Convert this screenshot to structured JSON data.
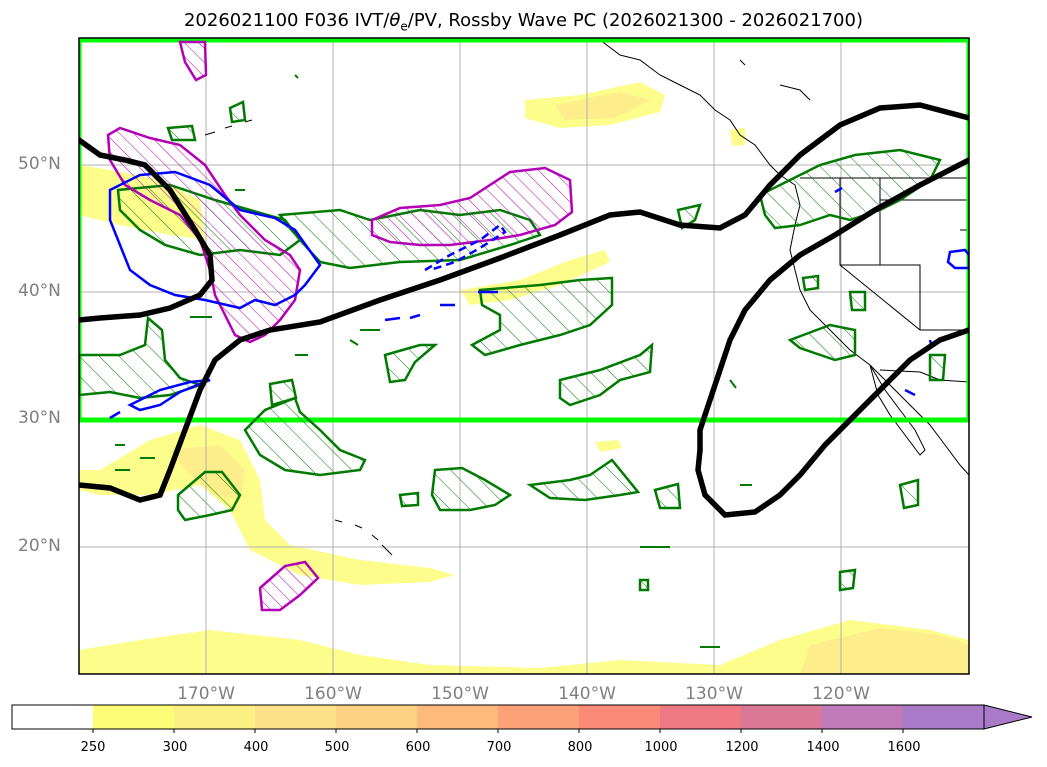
{
  "title": {
    "prefix": "2026021100 F036 IVT/",
    "theta": "θ",
    "theta_sub": "e",
    "suffix": "/PV, Rossby Wave PC (2026021300 - 2026021700)"
  },
  "map": {
    "lat_labels": [
      "50°N",
      "40°N",
      "30°N",
      "20°N"
    ],
    "lon_labels": [
      "170°W",
      "160°W",
      "150°W",
      "140°W",
      "130°W",
      "120°W"
    ]
  },
  "colorbar": {
    "labels": [
      "250",
      "300",
      "400",
      "500",
      "600",
      "700",
      "800",
      "1000",
      "1200",
      "1400",
      "1600"
    ],
    "colors": [
      "#fdfd78",
      "#fdf082",
      "#fde08a",
      "#fdd282",
      "#fdba7a",
      "#fda278",
      "#fd8a78",
      "#f07882",
      "#d87896",
      "#c07ab8",
      "#a87ac8"
    ]
  },
  "colors": {
    "highlight_box": "#00ff00",
    "rossby_wave": "#000000",
    "theta_e_contour": "#007a00",
    "pv_contour": "#0000ff",
    "pv_hatch": "#b400b4"
  }
}
